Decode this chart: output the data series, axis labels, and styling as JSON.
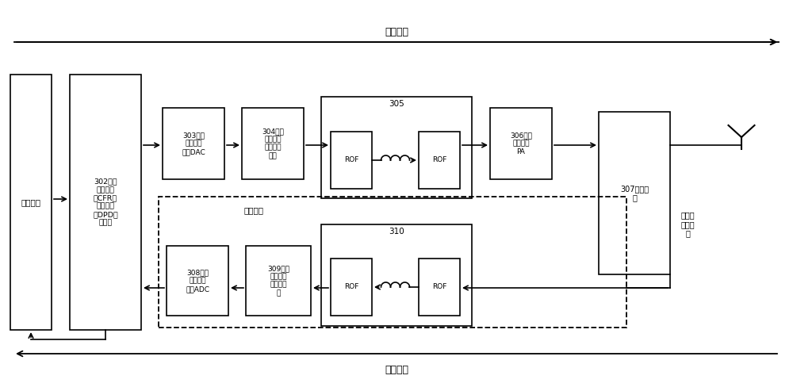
{
  "title_down": "下行链路",
  "title_up": "上行链路",
  "label_baseband": "基带信号",
  "label_302": "302，波\n峰因子降\n低CFR和\n数字预失\n真DPD处\n理单元",
  "label_303": "303，数\n字模拟转\n化器DAC",
  "label_304": "304，上\n变频和小\n信号放大\n单元",
  "label_305": "305",
  "label_306": "306，功\n率放大器\nPA",
  "label_307": "307，滤波\n器",
  "label_308": "308，模\n拟数字转\n化器ADC",
  "label_309": "309，下\n变频和反\n馈电路单\n元",
  "label_310": "310",
  "label_feedback_path": "反馈链路",
  "label_feedback_signal": "反馈和\n接收信\n号",
  "label_ROF": "ROF",
  "bg_color": "#ffffff",
  "box_color": "#000000",
  "line_color": "#000000"
}
